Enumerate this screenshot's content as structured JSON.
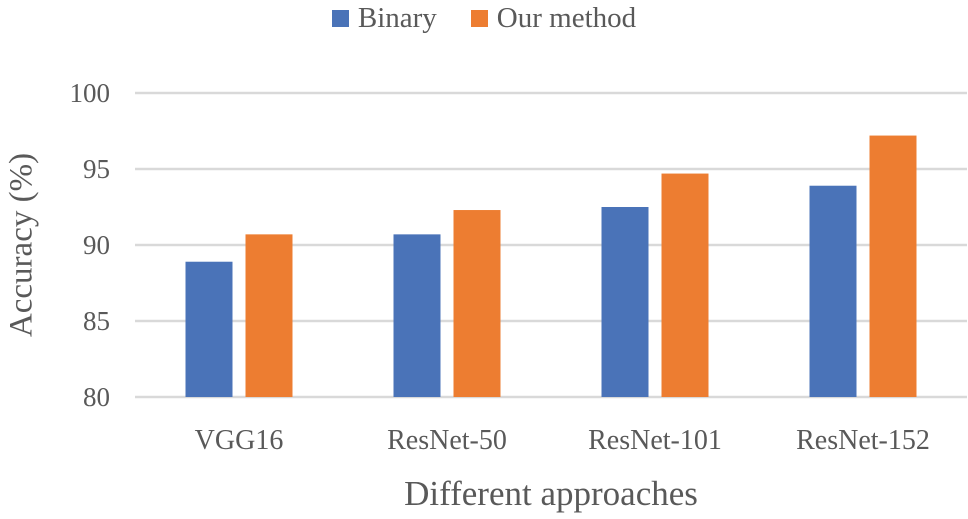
{
  "chart_data": {
    "type": "bar",
    "categories": [
      "VGG16",
      "ResNet-50",
      "ResNet-101",
      "ResNet-152"
    ],
    "series": [
      {
        "name": "Binary",
        "color": "#4a73b8",
        "values": [
          88.9,
          90.7,
          92.5,
          93.9
        ]
      },
      {
        "name": "Our method",
        "color": "#ed7d31",
        "values": [
          90.7,
          92.3,
          94.7,
          97.2
        ]
      }
    ],
    "title": "",
    "xlabel": "Different approaches",
    "ylabel": "Accuracy (%)",
    "ylim": [
      80,
      100
    ],
    "yticks": [
      80,
      85,
      90,
      95,
      100
    ],
    "grid": true,
    "legend": "top"
  }
}
